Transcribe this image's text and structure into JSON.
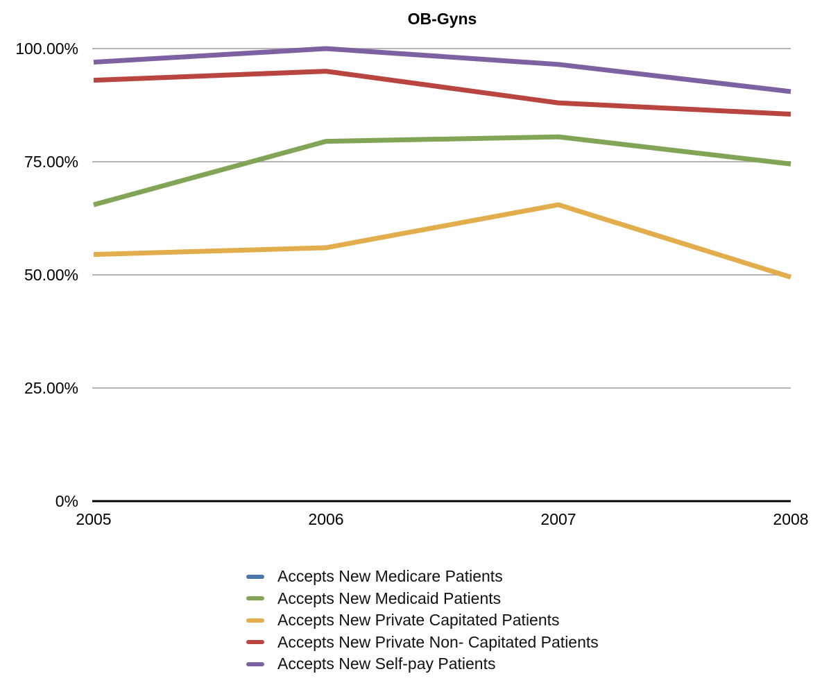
{
  "chart_data": {
    "type": "line",
    "title": "OB-Gyns",
    "xlabel": "",
    "ylabel": "",
    "x_labels": [
      "2005",
      "2006",
      "2007",
      "2008"
    ],
    "y_ticks": [
      {
        "value": 100,
        "label": "100.00%"
      },
      {
        "value": 75,
        "label": "75.00%"
      },
      {
        "value": 50,
        "label": "50.00%"
      },
      {
        "value": 25,
        "label": "25.00%"
      },
      {
        "value": 0,
        "label": "0%"
      }
    ],
    "ylim": [
      0,
      100
    ],
    "grid": true,
    "legend_position": "bottom",
    "series": [
      {
        "name": "Accepts New Medicare Patients",
        "color": "#4a77a9",
        "visible_in_plot": false,
        "values": []
      },
      {
        "name": "Accepts New Medicaid Patients",
        "color": "#82a456",
        "visible_in_plot": true,
        "values": [
          65.5,
          79.5,
          80.5,
          74.5
        ]
      },
      {
        "name": "Accepts New Private Capitated Patients",
        "color": "#e2ad4c",
        "visible_in_plot": true,
        "values": [
          54.5,
          56.0,
          65.5,
          49.5
        ]
      },
      {
        "name": "Accepts New Private Non- Capitated Patients",
        "color": "#b8453f",
        "visible_in_plot": true,
        "values": [
          93.0,
          95.0,
          88.0,
          85.5
        ]
      },
      {
        "name": "Accepts New Self-pay Patients",
        "color": "#7e61a1",
        "visible_in_plot": true,
        "values": [
          97.0,
          100.0,
          96.5,
          90.5
        ]
      }
    ],
    "style": {
      "gridline_color": "#b3b3b3",
      "axis_color": "#000000",
      "line_width": 7
    }
  }
}
